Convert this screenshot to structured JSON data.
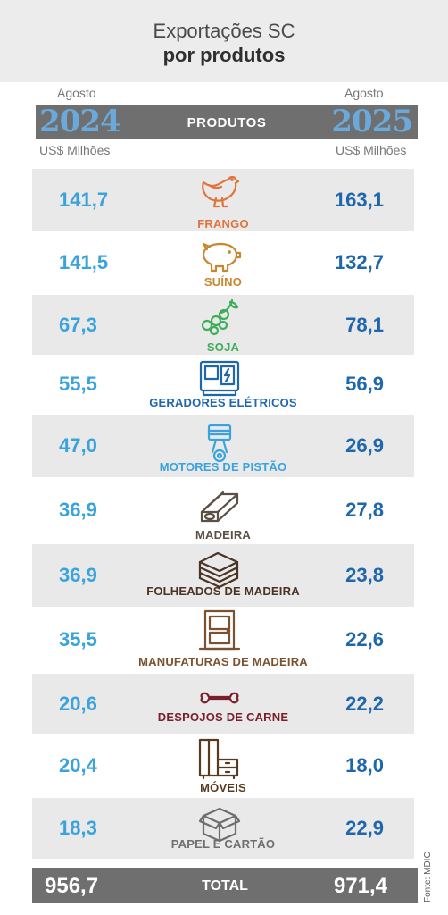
{
  "header": {
    "title_line1": "Exportações SC",
    "title_line2": "por produtos",
    "month_left": "Agosto",
    "month_right": "Agosto",
    "year_left": "2024",
    "year_right": "2025",
    "column_label": "PRODUTOS",
    "unit_left": "US$ Milhões",
    "unit_right": "US$ Milhões"
  },
  "colors": {
    "value_2024": "#3aa3dd",
    "value_2025": "#1f67ad",
    "bar_gray": "#6f6f6f",
    "row_shade": "#e9e9e9"
  },
  "chart_data": {
    "type": "table",
    "columns": [
      "2024",
      "PRODUTOS",
      "2025"
    ],
    "rows": [
      {
        "product": "FRANGO",
        "v2024": "141,7",
        "v2025": "163,1",
        "color": "#e0743c",
        "icon": "chicken-icon"
      },
      {
        "product": "SUÍNO",
        "v2024": "141,5",
        "v2025": "132,7",
        "color": "#c8862e",
        "icon": "pig-icon"
      },
      {
        "product": "SOJA",
        "v2024": "67,3",
        "v2025": "78,1",
        "color": "#3cae5a",
        "icon": "soybean-icon"
      },
      {
        "product": "GERADORES ELÉTRICOS",
        "v2024": "55,5",
        "v2025": "56,9",
        "color": "#1f67ad",
        "icon": "generator-icon"
      },
      {
        "product": "MOTORES DE PISTÃO",
        "v2024": "47,0",
        "v2025": "26,9",
        "color": "#3aa3dd",
        "icon": "piston-icon"
      },
      {
        "product": "MADEIRA",
        "v2024": "36,9",
        "v2025": "27,8",
        "color": "#5a5046",
        "icon": "wood-icon"
      },
      {
        "product": "FOLHEADOS DE MADEIRA",
        "v2024": "36,9",
        "v2025": "23,8",
        "color": "#4a3424",
        "icon": "veneer-icon"
      },
      {
        "product": "MANUFATURAS DE MADEIRA",
        "v2024": "35,5",
        "v2025": "22,6",
        "color": "#7a5230",
        "icon": "door-icon"
      },
      {
        "product": "DESPOJOS DE CARNE",
        "v2024": "20,6",
        "v2025": "22,2",
        "color": "#7a1e2a",
        "icon": "bone-icon"
      },
      {
        "product": "MÓVEIS",
        "v2024": "20,4",
        "v2025": "18,0",
        "color": "#5a3a1e",
        "icon": "furniture-icon"
      },
      {
        "product": "PAPEL E CARTÃO",
        "v2024": "18,3",
        "v2025": "22,9",
        "color": "#6e6e6e",
        "icon": "box-icon"
      }
    ],
    "total": {
      "label": "TOTAL",
      "v2024": "956,7",
      "v2025": "971,4"
    }
  },
  "source": "Fonte: MDIC"
}
